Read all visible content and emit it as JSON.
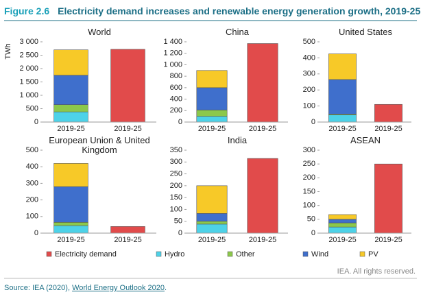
{
  "header": {
    "label": "Figure 2.6",
    "title": "Electricity demand increases and renewable energy generation growth, 2019-25"
  },
  "chart_data": [
    {
      "type": "bar",
      "stacked": true,
      "title": "World",
      "ylabel": "TWh",
      "categories": [
        "2019-25",
        "2019-25"
      ],
      "ylim": [
        0,
        3000
      ],
      "yticks": [
        0,
        500,
        {
          "value": 1000,
          "label": "1 000"
        },
        {
          "value": 1500,
          "label": "1 500"
        },
        {
          "value": 2000,
          "label": "2 000"
        },
        {
          "value": 2500,
          "label": "2 500"
        },
        {
          "value": 3000,
          "label": "3 000"
        }
      ],
      "series": [
        {
          "name": "Electricity demand",
          "color": "#e14b4b",
          "values": [
            null,
            2720
          ]
        },
        {
          "name": "Hydro",
          "color": "#4dd2e8",
          "values": [
            380,
            null
          ]
        },
        {
          "name": "Other",
          "color": "#8cc84b",
          "values": [
            270,
            null
          ]
        },
        {
          "name": "Wind",
          "color": "#3f6fcc",
          "values": [
            1100,
            null
          ]
        },
        {
          "name": "PV",
          "color": "#f7c928",
          "values": [
            950,
            null
          ]
        }
      ]
    },
    {
      "type": "bar",
      "stacked": true,
      "title": "China",
      "categories": [
        "2019-25",
        "2019-25"
      ],
      "ylim": [
        0,
        1400
      ],
      "yticks": [
        0,
        200,
        400,
        600,
        800,
        {
          "value": 1000,
          "label": "1 000"
        },
        {
          "value": 1200,
          "label": "1 200"
        },
        {
          "value": 1400,
          "label": "1 400"
        }
      ],
      "series": [
        {
          "name": "Electricity demand",
          "color": "#e14b4b",
          "values": [
            null,
            1370
          ]
        },
        {
          "name": "Hydro",
          "color": "#4dd2e8",
          "values": [
            100,
            null
          ]
        },
        {
          "name": "Other",
          "color": "#8cc84b",
          "values": [
            110,
            null
          ]
        },
        {
          "name": "Wind",
          "color": "#3f6fcc",
          "values": [
            390,
            null
          ]
        },
        {
          "name": "PV",
          "color": "#f7c928",
          "values": [
            300,
            null
          ]
        }
      ]
    },
    {
      "type": "bar",
      "stacked": true,
      "title": "United States",
      "categories": [
        "2019-25",
        "2019-25"
      ],
      "ylim": [
        0,
        500
      ],
      "yticks": [
        0,
        100,
        200,
        300,
        400,
        500
      ],
      "series": [
        {
          "name": "Electricity demand",
          "color": "#e14b4b",
          "values": [
            null,
            110
          ]
        },
        {
          "name": "Hydro",
          "color": "#4dd2e8",
          "values": [
            45,
            null
          ]
        },
        {
          "name": "Other",
          "color": "#8cc84b",
          "values": [
            5,
            null
          ]
        },
        {
          "name": "Wind",
          "color": "#3f6fcc",
          "values": [
            215,
            null
          ]
        },
        {
          "name": "PV",
          "color": "#f7c928",
          "values": [
            160,
            null
          ]
        }
      ]
    },
    {
      "type": "bar",
      "stacked": true,
      "title": "European Union & United Kingdom",
      "categories": [
        "2019-25",
        "2019-25"
      ],
      "ylim": [
        0,
        500
      ],
      "yticks": [
        0,
        100,
        200,
        300,
        400,
        500
      ],
      "series": [
        {
          "name": "Electricity demand",
          "color": "#e14b4b",
          "values": [
            null,
            40
          ]
        },
        {
          "name": "Hydro",
          "color": "#4dd2e8",
          "values": [
            45,
            null
          ]
        },
        {
          "name": "Other",
          "color": "#8cc84b",
          "values": [
            20,
            null
          ]
        },
        {
          "name": "Wind",
          "color": "#3f6fcc",
          "values": [
            215,
            null
          ]
        },
        {
          "name": "PV",
          "color": "#f7c928",
          "values": [
            140,
            null
          ]
        }
      ]
    },
    {
      "type": "bar",
      "stacked": true,
      "title": "India",
      "categories": [
        "2019-25",
        "2019-25"
      ],
      "ylim": [
        0,
        350
      ],
      "yticks": [
        0,
        50,
        100,
        150,
        200,
        250,
        300,
        350
      ],
      "series": [
        {
          "name": "Electricity demand",
          "color": "#e14b4b",
          "values": [
            null,
            315
          ]
        },
        {
          "name": "Hydro",
          "color": "#4dd2e8",
          "values": [
            38,
            null
          ]
        },
        {
          "name": "Other",
          "color": "#8cc84b",
          "values": [
            12,
            null
          ]
        },
        {
          "name": "Wind",
          "color": "#3f6fcc",
          "values": [
            33,
            null
          ]
        },
        {
          "name": "PV",
          "color": "#f7c928",
          "values": [
            117,
            null
          ]
        }
      ]
    },
    {
      "type": "bar",
      "stacked": true,
      "title": "ASEAN",
      "categories": [
        "2019-25",
        "2019-25"
      ],
      "ylim": [
        0,
        300
      ],
      "yticks": [
        0,
        50,
        100,
        150,
        200,
        250,
        300
      ],
      "series": [
        {
          "name": "Electricity demand",
          "color": "#e14b4b",
          "values": [
            null,
            250
          ]
        },
        {
          "name": "Hydro",
          "color": "#4dd2e8",
          "values": [
            22,
            null
          ]
        },
        {
          "name": "Other",
          "color": "#8cc84b",
          "values": [
            15,
            null
          ]
        },
        {
          "name": "Wind",
          "color": "#3f6fcc",
          "values": [
            13,
            null
          ]
        },
        {
          "name": "PV",
          "color": "#f7c928",
          "values": [
            17,
            null
          ]
        }
      ]
    }
  ],
  "footer": {
    "rights": "IEA. All rights reserved.",
    "source": "Source: IEA (2020), ",
    "link": "World Energy Outlook 2020",
    "end": "."
  }
}
